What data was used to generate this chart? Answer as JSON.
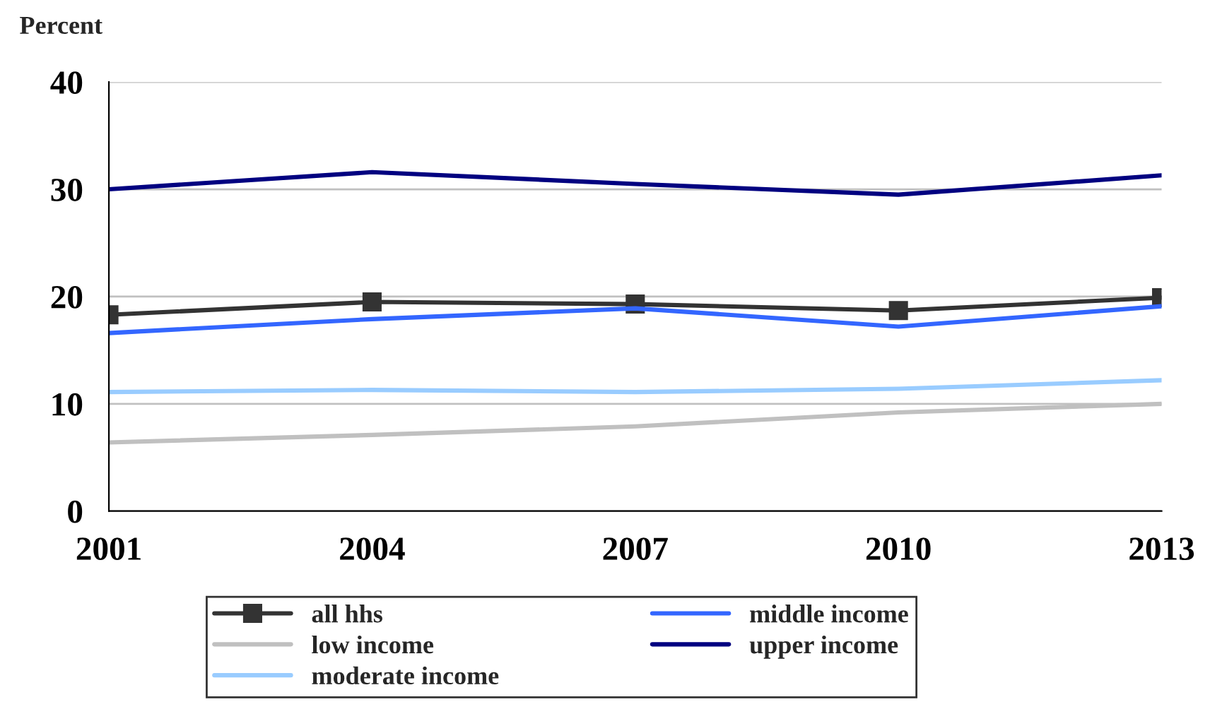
{
  "chart_data": {
    "type": "line",
    "ylabel": "Percent",
    "x": [
      2001,
      2004,
      2007,
      2010,
      2013
    ],
    "series": [
      {
        "name": "all hhs",
        "color": "#333333",
        "marker": "square",
        "values": [
          18.3,
          19.5,
          19.3,
          18.7,
          19.9
        ]
      },
      {
        "name": "low income",
        "color": "#c0c0c0",
        "values": [
          6.4,
          7.1,
          7.9,
          9.2,
          10.0
        ]
      },
      {
        "name": "moderate income",
        "color": "#99ccff",
        "values": [
          11.1,
          11.3,
          11.1,
          11.4,
          12.2
        ]
      },
      {
        "name": "middle income",
        "color": "#3366ff",
        "values": [
          16.6,
          17.9,
          18.9,
          17.2,
          19.1
        ]
      },
      {
        "name": "upper income",
        "color": "#000080",
        "values": [
          30.0,
          31.6,
          30.5,
          29.5,
          31.3
        ]
      }
    ],
    "xlim": [
      2001,
      2013
    ],
    "xticks": [
      2001,
      2004,
      2007,
      2010,
      2013
    ],
    "ylim": [
      0,
      40
    ],
    "yticks": [
      0,
      10,
      20,
      30,
      40
    ],
    "grid": "y",
    "legend": "bottom",
    "line_style": "solid"
  }
}
